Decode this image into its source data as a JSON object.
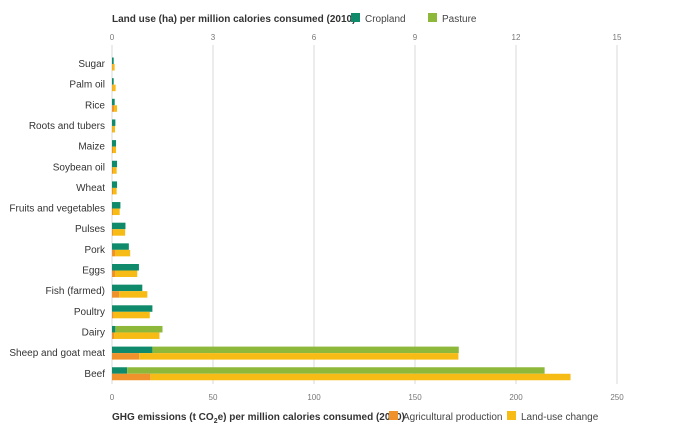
{
  "chart_data": {
    "type": "bar",
    "orientation": "horizontal",
    "categories": [
      "Sugar",
      "Palm oil",
      "Rice",
      "Roots and tubers",
      "Maize",
      "Soybean oil",
      "Wheat",
      "Fruits and vegetables",
      "Pulses",
      "Pork",
      "Eggs",
      "Fish (farmed)",
      "Poultry",
      "Dairy",
      "Sheep and goat meat",
      "Beef"
    ],
    "top_axis": {
      "title": "Land use (ha) per million calories consumed (2010)",
      "range": [
        0,
        15
      ],
      "ticks": [
        0,
        3,
        6,
        9,
        12,
        15
      ],
      "stacked": true,
      "series": [
        {
          "name": "Cropland",
          "color": "#0f8a6a",
          "values": [
            0.05,
            0.05,
            0.08,
            0.1,
            0.12,
            0.15,
            0.15,
            0.25,
            0.4,
            0.5,
            0.8,
            0.9,
            1.2,
            0.1,
            1.2,
            0.45
          ]
        },
        {
          "name": "Pasture",
          "color": "#8db83a",
          "values": [
            0,
            0,
            0,
            0,
            0,
            0,
            0,
            0,
            0,
            0,
            0,
            0,
            0,
            1.4,
            9.1,
            12.4
          ]
        }
      ]
    },
    "bottom_axis": {
      "title_parts": [
        "GHG emissions (t CO",
        "2",
        "e) per million calories consumed (2010)"
      ],
      "range": [
        0,
        250
      ],
      "ticks": [
        0,
        50,
        100,
        150,
        200,
        250
      ],
      "stacked": true,
      "series": [
        {
          "name": "Agricultural production",
          "color": "#f0922b",
          "values": [
            0.3,
            0.3,
            1.0,
            0.3,
            0.5,
            0.5,
            0.5,
            0.5,
            0.5,
            1.5,
            1.5,
            3.5,
            0.7,
            1.0,
            13.5,
            19.0
          ]
        },
        {
          "name": "Land-use change",
          "color": "#f7bb16",
          "values": [
            1.0,
            1.5,
            1.5,
            1.2,
            1.5,
            1.8,
            1.8,
            3.3,
            6.0,
            7.5,
            11.0,
            14.0,
            18.0,
            22.5,
            158.0,
            208.0
          ]
        }
      ]
    },
    "grid": true,
    "legend_position": "inline-with-axis-titles"
  }
}
